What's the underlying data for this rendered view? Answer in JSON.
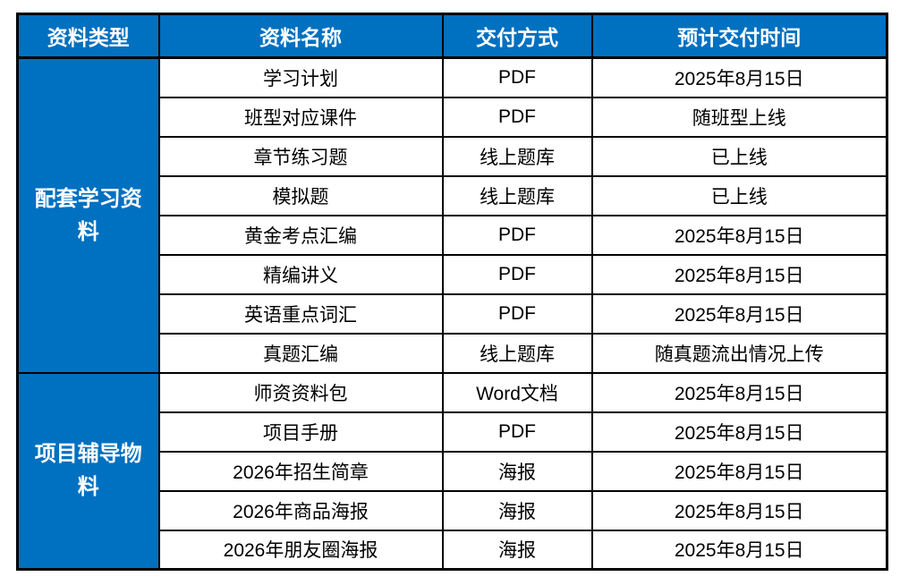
{
  "table": {
    "headers": [
      "资料类型",
      "资料名称",
      "交付方式",
      "预计交付时间"
    ],
    "sections": [
      {
        "category": "配套学习资料",
        "rows": [
          [
            "学习计划",
            "PDF",
            "2025年8月15日"
          ],
          [
            "班型对应课件",
            "PDF",
            "随班型上线"
          ],
          [
            "章节练习题",
            "线上题库",
            "已上线"
          ],
          [
            "模拟题",
            "线上题库",
            "已上线"
          ],
          [
            "黄金考点汇编",
            "PDF",
            "2025年8月15日"
          ],
          [
            "精编讲义",
            "PDF",
            "2025年8月15日"
          ],
          [
            "英语重点词汇",
            "PDF",
            "2025年8月15日"
          ],
          [
            "真题汇编",
            "线上题库",
            "随真题流出情况上传"
          ]
        ]
      },
      {
        "category": "项目辅导物料",
        "rows": [
          [
            "师资资料包",
            "Word文档",
            "2025年8月15日"
          ],
          [
            "项目手册",
            "PDF",
            "2025年8月15日"
          ],
          [
            "2026年招生简章",
            "海报",
            "2025年8月15日"
          ],
          [
            "2026年商品海报",
            "海报",
            "2025年8月15日"
          ],
          [
            "2026年朋友圈海报",
            "海报",
            "2025年8月15日"
          ]
        ]
      }
    ],
    "colors": {
      "header_bg": "#0070C0",
      "header_text": "#FFFFFF",
      "border": "#000000",
      "body_text": "#000000",
      "body_bg": "#FFFFFF"
    }
  }
}
